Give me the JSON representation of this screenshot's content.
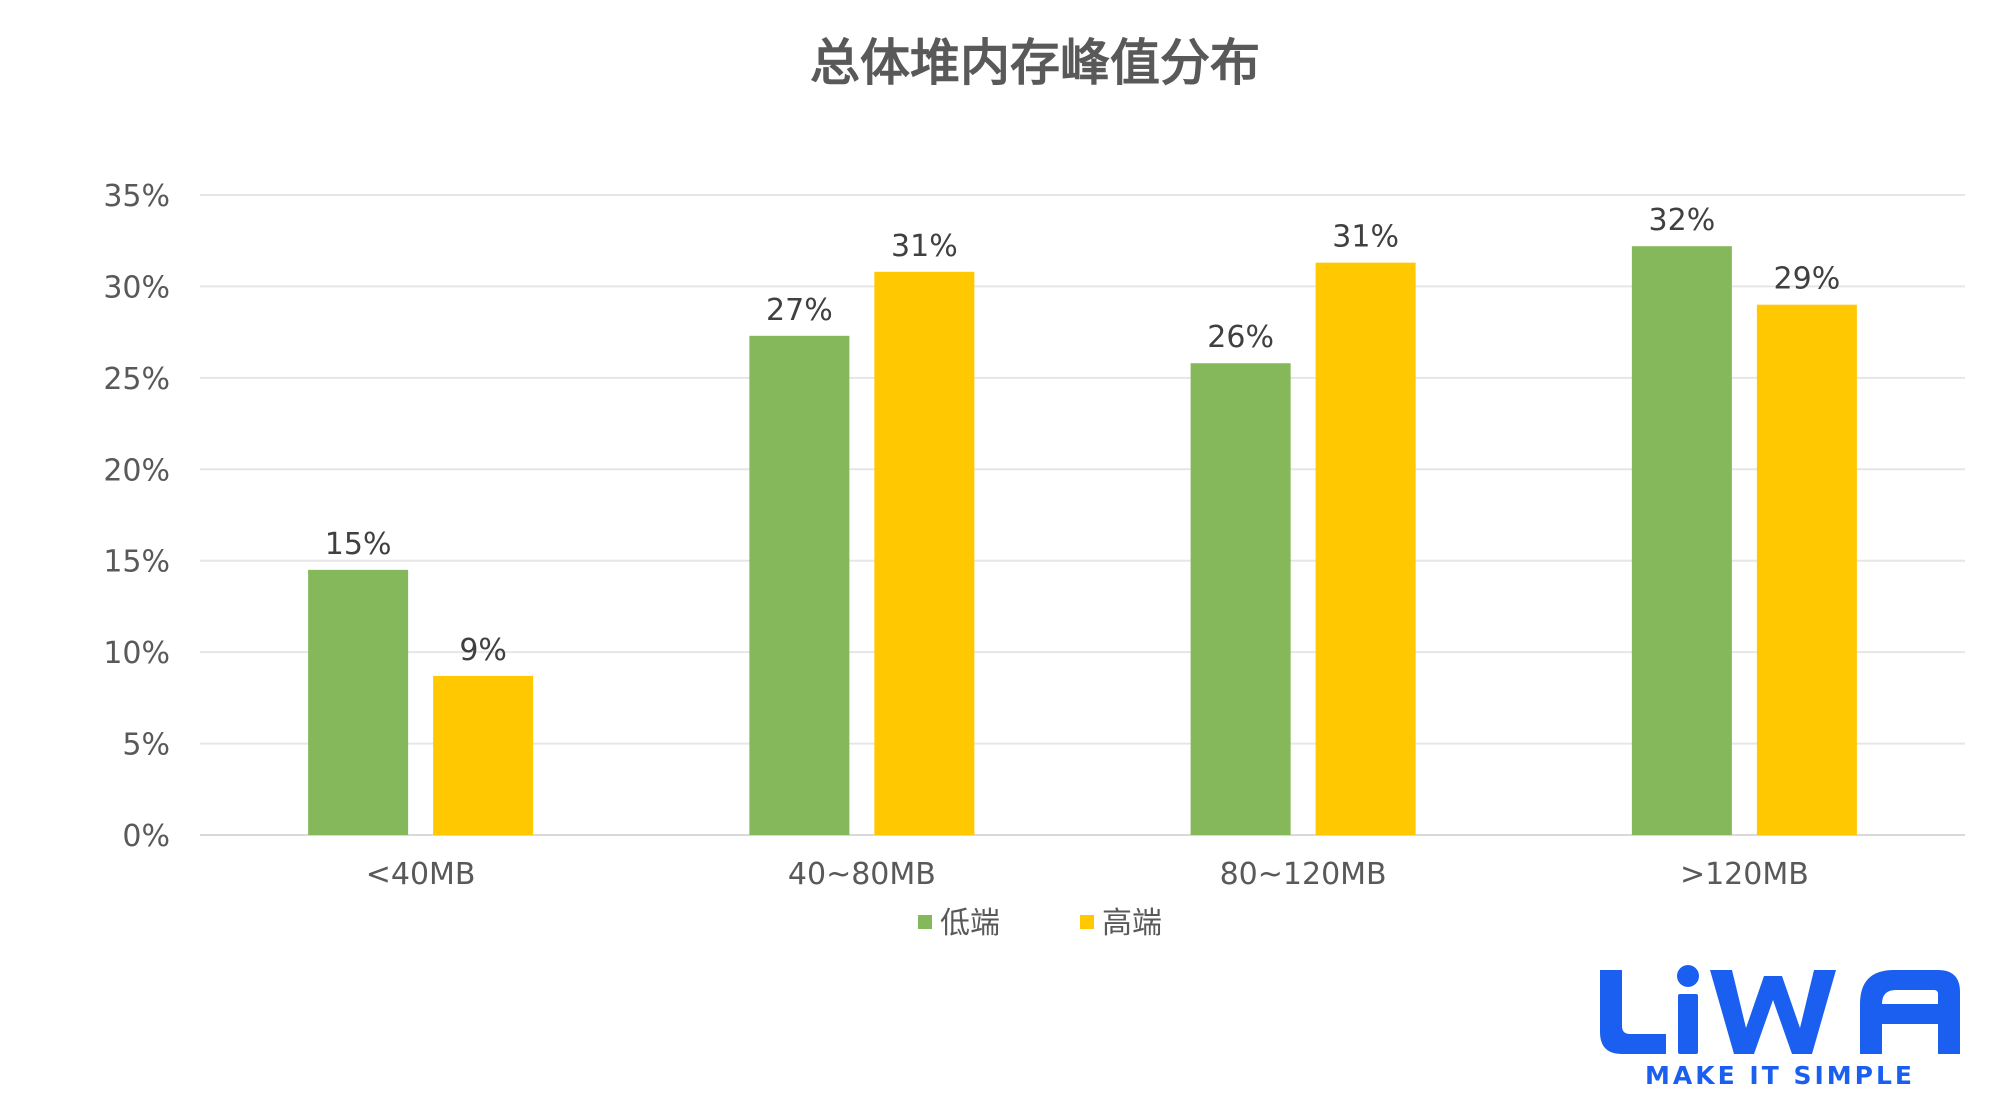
{
  "chart_data": {
    "type": "bar",
    "title": "总体堆内存峰值分布",
    "categories": [
      "<40MB",
      "40~80MB",
      "80~120MB",
      ">120MB"
    ],
    "series": [
      {
        "name": "低端",
        "color": "#84b85a",
        "values": [
          14.5,
          27.3,
          25.8,
          32.2
        ],
        "labels": [
          "15%",
          "27%",
          "26%",
          "32%"
        ]
      },
      {
        "name": "高端",
        "color": "#ffc800",
        "values": [
          8.7,
          30.8,
          31.3,
          29.0
        ],
        "labels": [
          "9%",
          "31%",
          "31%",
          "29%"
        ]
      }
    ],
    "ylim": [
      0,
      35
    ],
    "yticks": [
      0,
      5,
      10,
      15,
      20,
      25,
      30,
      35
    ],
    "ytick_labels": [
      "0%",
      "5%",
      "10%",
      "15%",
      "20%",
      "25%",
      "30%",
      "35%"
    ],
    "grid": true,
    "legend": "bottom"
  },
  "logo": {
    "wordmark": "LiWA",
    "tagline": "MAKE IT SIMPLE",
    "color": "#1a5ff0"
  }
}
